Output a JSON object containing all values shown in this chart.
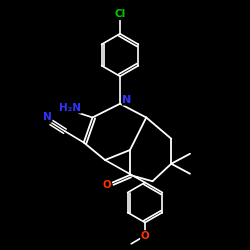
{
  "background_color": "#000000",
  "bond_color": "#ffffff",
  "N_color": "#3333ff",
  "O_color": "#ff3300",
  "Cl_color": "#00cc00",
  "figsize": [
    2.5,
    2.5
  ],
  "dpi": 100,
  "atoms": {
    "Cl_label": "Cl",
    "N1_label": "N",
    "NH2_label": "H₂N",
    "O_label": "O",
    "N_nitrile_label": "N"
  }
}
